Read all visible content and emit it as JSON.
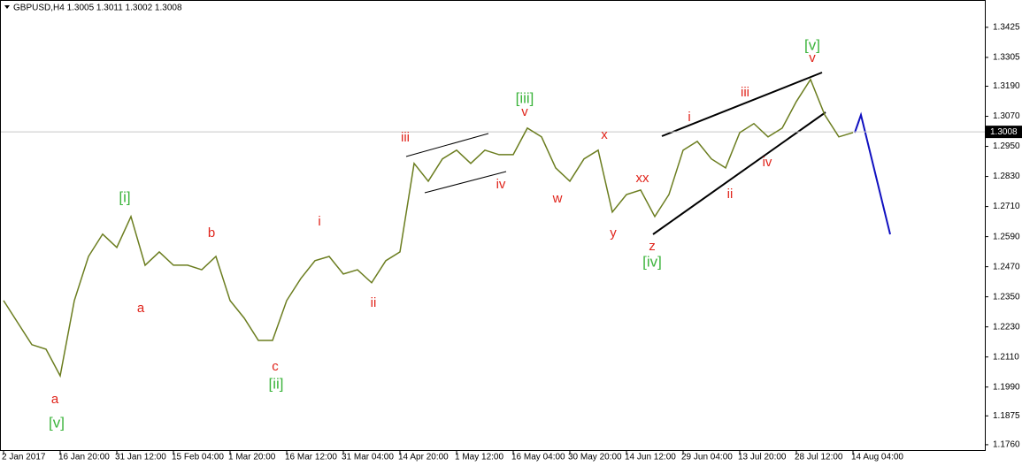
{
  "chart_data": {
    "type": "line",
    "title": "GBPUSD,H4  1.3005 1.3011 1.3002 1.3008",
    "categories": [
      "2 Jan 2017",
      null,
      null,
      null,
      "16 Jan 20:00",
      null,
      null,
      null,
      "31 Jan 12:00",
      null,
      null,
      null,
      "15 Feb 04:00",
      null,
      null,
      null,
      "1 Mar 20:00",
      null,
      null,
      null,
      "16 Mar 12:00",
      null,
      null,
      null,
      "31 Mar 04:00",
      null,
      null,
      null,
      "14 Apr 20:00",
      null,
      null,
      null,
      "1 May 12:00",
      null,
      null,
      null,
      "16 May 04:00",
      null,
      null,
      null,
      "30 May 20:00",
      null,
      null,
      null,
      "14 Jun 12:00",
      null,
      null,
      null,
      "29 Jun 04:00",
      null,
      null,
      null,
      "13 Jul 20:00",
      null,
      null,
      null,
      "28 Jul 12:00",
      null,
      null,
      null,
      "14 Aug 04:00"
    ],
    "values": [
      1.2335,
      1.2247,
      1.2159,
      1.2141,
      1.2035,
      1.2335,
      1.2511,
      1.26,
      1.2547,
      1.267,
      1.2476,
      1.2529,
      1.2476,
      1.2476,
      1.2458,
      1.2511,
      1.2335,
      1.2265,
      1.2176,
      1.2176,
      1.2335,
      1.2423,
      1.2494,
      1.2511,
      1.2441,
      1.2458,
      1.2406,
      1.2494,
      1.2529,
      1.2882,
      1.2811,
      1.29,
      1.2935,
      1.2882,
      1.2935,
      1.2917,
      1.2917,
      1.3023,
      1.2988,
      1.2864,
      1.2811,
      1.29,
      1.2935,
      1.2688,
      1.2758,
      1.2776,
      1.267,
      1.2758,
      1.2935,
      1.297,
      1.29,
      1.2864,
      1.3005,
      1.3041,
      1.2988,
      1.3023,
      1.3129,
      1.3217,
      1.3076,
      1.2988,
      1.3005
    ],
    "color": "#6b7d1f",
    "last_price": 1.3008,
    "ylim": [
      1.1735,
      1.3534
    ],
    "yticks": [
      1.3425,
      {
        "value": 1.3305,
        "label": "1.3305"
      },
      {
        "value": 1.319,
        "label": "1.3190"
      },
      {
        "value": 1.307,
        "label": "1.3070"
      },
      {
        "value": 1.295,
        "label": "1.2950"
      },
      {
        "value": 1.283,
        "label": "1.2830"
      },
      {
        "value": 1.271,
        "label": "1.2710"
      },
      {
        "value": 1.259,
        "label": "1.2590"
      },
      {
        "value": 1.247,
        "label": "1.2470"
      },
      {
        "value": 1.235,
        "label": "1.2350"
      },
      {
        "value": 1.223,
        "label": "1.2230"
      },
      {
        "value": 1.211,
        "label": "1.2110"
      },
      {
        "value": 1.199,
        "label": "1.1990"
      },
      1.1875,
      {
        "value": 1.176,
        "label": "1.1760"
      }
    ],
    "annotations": [
      "[v]",
      "a",
      "[i]",
      "a",
      "b",
      "c",
      "[ii]",
      "i",
      "ii",
      "iii",
      "[iii]",
      "v",
      "iv",
      "w",
      "x",
      "xx",
      "y",
      "z",
      "[iv]",
      "i",
      "iii",
      "ii",
      "iv",
      "[v]",
      "v"
    ]
  }
}
